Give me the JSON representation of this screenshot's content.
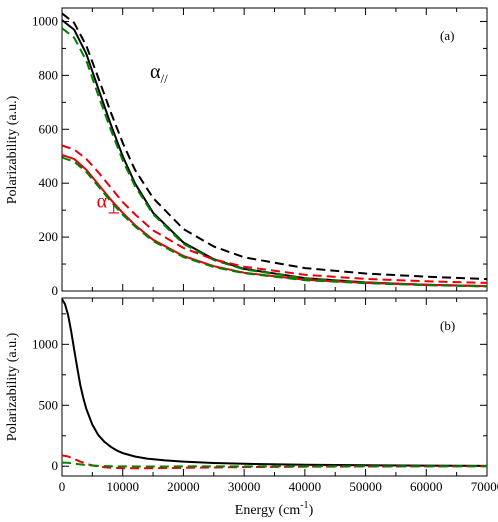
{
  "chart_data": [
    {
      "type": "line",
      "panel_label": "(a)",
      "ylabel": "Polarizability (a.u.)",
      "xlim": [
        0,
        70000
      ],
      "ylim": [
        0,
        1050
      ],
      "xticks": [
        0,
        10000,
        20000,
        30000,
        40000,
        50000,
        60000,
        70000
      ],
      "yticks": [
        0,
        200,
        400,
        600,
        800,
        1000
      ],
      "grid": false,
      "annotations": [
        {
          "symbol": "α",
          "subscript": "//",
          "color": "#000000",
          "x": 14500,
          "y": 790
        },
        {
          "symbol": "α",
          "subscript": "⊥",
          "color": "#e8000b",
          "x": 5700,
          "y": 310
        }
      ],
      "series": [
        {
          "color": "#000000",
          "style": "solid",
          "x": [
            0,
            2000,
            4000,
            6000,
            8000,
            10000,
            12000,
            15000,
            20000,
            25000,
            30000,
            40000,
            50000,
            60000,
            70000
          ],
          "values": [
            1005,
            970,
            880,
            750,
            620,
            500,
            400,
            290,
            180,
            118,
            82,
            48,
            32,
            23,
            18
          ]
        },
        {
          "color": "#000000",
          "style": "dashed",
          "x": [
            0,
            2000,
            4000,
            6000,
            8000,
            10000,
            12000,
            15000,
            20000,
            25000,
            30000,
            40000,
            50000,
            60000,
            70000
          ],
          "values": [
            1030,
            995,
            910,
            790,
            665,
            550,
            450,
            345,
            230,
            165,
            125,
            85,
            65,
            53,
            44
          ]
        },
        {
          "color": "#008000",
          "style": "dashed",
          "x": [
            0,
            2000,
            4000,
            6000,
            8000,
            10000,
            12000,
            15000,
            20000,
            25000,
            30000,
            40000,
            50000,
            60000,
            70000
          ],
          "values": [
            975,
            940,
            855,
            725,
            600,
            485,
            390,
            285,
            175,
            115,
            80,
            47,
            31,
            22,
            17
          ]
        },
        {
          "color": "#e8000b",
          "style": "solid",
          "x": [
            0,
            2000,
            4000,
            6000,
            8000,
            10000,
            12000,
            15000,
            20000,
            25000,
            30000,
            40000,
            50000,
            60000,
            70000
          ],
          "values": [
            505,
            490,
            450,
            395,
            340,
            290,
            245,
            190,
            130,
            92,
            68,
            42,
            30,
            23,
            18
          ]
        },
        {
          "color": "#e8000b",
          "style": "dashed",
          "x": [
            0,
            2000,
            4000,
            6000,
            8000,
            10000,
            12000,
            15000,
            20000,
            25000,
            30000,
            40000,
            50000,
            60000,
            70000
          ],
          "values": [
            540,
            525,
            490,
            440,
            385,
            330,
            285,
            225,
            160,
            117,
            90,
            60,
            45,
            36,
            30
          ]
        },
        {
          "color": "#008000",
          "style": "dashed",
          "x": [
            0,
            2000,
            4000,
            6000,
            8000,
            10000,
            12000,
            15000,
            20000,
            25000,
            30000,
            40000,
            50000,
            60000,
            70000
          ],
          "values": [
            495,
            480,
            442,
            388,
            333,
            283,
            240,
            185,
            126,
            89,
            66,
            40,
            29,
            22,
            17
          ]
        }
      ]
    },
    {
      "type": "line",
      "panel_label": "(b)",
      "xlabel": "Energy (cm",
      "xlabel_superscript": "-1",
      "xlabel_suffix": ")",
      "ylabel": "Polarizability (a.u.)",
      "xlim": [
        0,
        70000
      ],
      "ylim": [
        -80,
        1380
      ],
      "xticks": [
        0,
        10000,
        20000,
        30000,
        40000,
        50000,
        60000,
        70000
      ],
      "yticks": [
        0,
        500,
        1000
      ],
      "grid": false,
      "series": [
        {
          "color": "#000000",
          "style": "solid",
          "x": [
            0,
            500,
            1000,
            1500,
            2000,
            2500,
            3000,
            3500,
            4000,
            5000,
            6000,
            7000,
            8000,
            9000,
            10000,
            12000,
            14000,
            17000,
            20000,
            25000,
            30000,
            40000,
            50000,
            60000,
            70000
          ],
          "values": [
            1370,
            1330,
            1240,
            1110,
            960,
            810,
            670,
            560,
            470,
            340,
            255,
            200,
            160,
            130,
            108,
            80,
            63,
            48,
            38,
            27,
            20,
            12,
            8,
            5,
            3
          ]
        },
        {
          "color": "#e8000b",
          "style": "dashed",
          "x": [
            0,
            1000,
            2000,
            3000,
            4000,
            5000,
            6000,
            7000,
            8000,
            10000,
            12000,
            15000,
            20000,
            25000,
            30000,
            40000,
            50000,
            60000,
            70000
          ],
          "values": [
            90,
            80,
            60,
            38,
            20,
            7,
            -2,
            -8,
            -12,
            -16,
            -17,
            -16,
            -13,
            -10,
            -7,
            -4,
            -2,
            -1,
            0
          ]
        },
        {
          "color": "#008000",
          "style": "dashed",
          "x": [
            0,
            1000,
            2000,
            3000,
            4000,
            6000,
            8000,
            10000,
            15000,
            20000,
            30000,
            40000,
            50000,
            60000,
            70000
          ],
          "values": [
            30,
            28,
            22,
            15,
            9,
            3,
            0,
            -1,
            -2,
            -1,
            -1,
            0,
            0,
            0,
            0
          ]
        }
      ]
    }
  ]
}
